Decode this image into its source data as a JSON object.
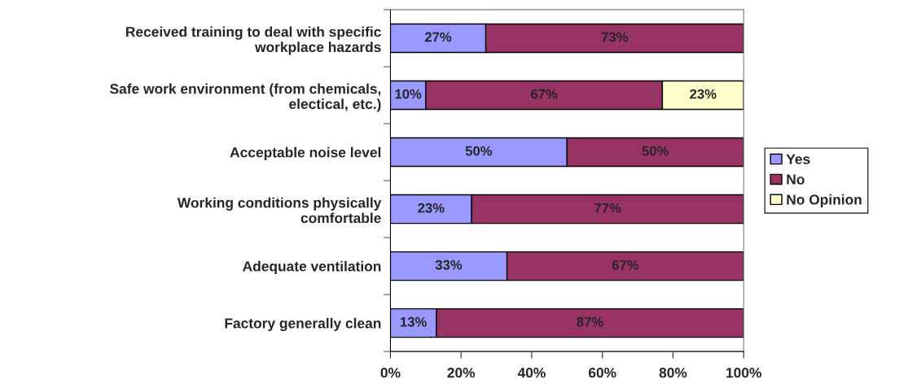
{
  "chart_data": {
    "type": "bar",
    "orientation": "horizontal",
    "stacked": true,
    "categories": [
      "Received training to deal with specific\nworkplace hazards",
      "Safe work environment (from chemicals,\nelectical, etc.)",
      "Acceptable noise level",
      "Working conditions physically\ncomfortable",
      "Adequate ventilation",
      "Factory generally clean"
    ],
    "series": [
      {
        "name": "Yes",
        "color": "#9999ff",
        "values": [
          27,
          10,
          50,
          23,
          33,
          13
        ],
        "value_labels": [
          "27%",
          "10%",
          "50%",
          "23%",
          "33%",
          "13%"
        ]
      },
      {
        "name": "No",
        "color": "#993366",
        "values": [
          73,
          67,
          50,
          77,
          67,
          87
        ],
        "value_labels": [
          "73%",
          "67%",
          "50%",
          "77%",
          "67%",
          "87%"
        ]
      },
      {
        "name": "No Opinion",
        "color": "#ffffcc",
        "values": [
          null,
          23,
          null,
          null,
          null,
          null
        ],
        "value_labels": [
          null,
          "23%",
          null,
          null,
          null,
          null
        ]
      }
    ],
    "xlim": [
      0,
      100
    ],
    "xticks": [
      {
        "value": 0,
        "label": "0%"
      },
      {
        "value": 20,
        "label": "20%"
      },
      {
        "value": 40,
        "label": "40%"
      },
      {
        "value": 60,
        "label": "60%"
      },
      {
        "value": 80,
        "label": "80%"
      },
      {
        "value": 100,
        "label": "100%"
      }
    ],
    "grid": false,
    "legend": "right"
  }
}
